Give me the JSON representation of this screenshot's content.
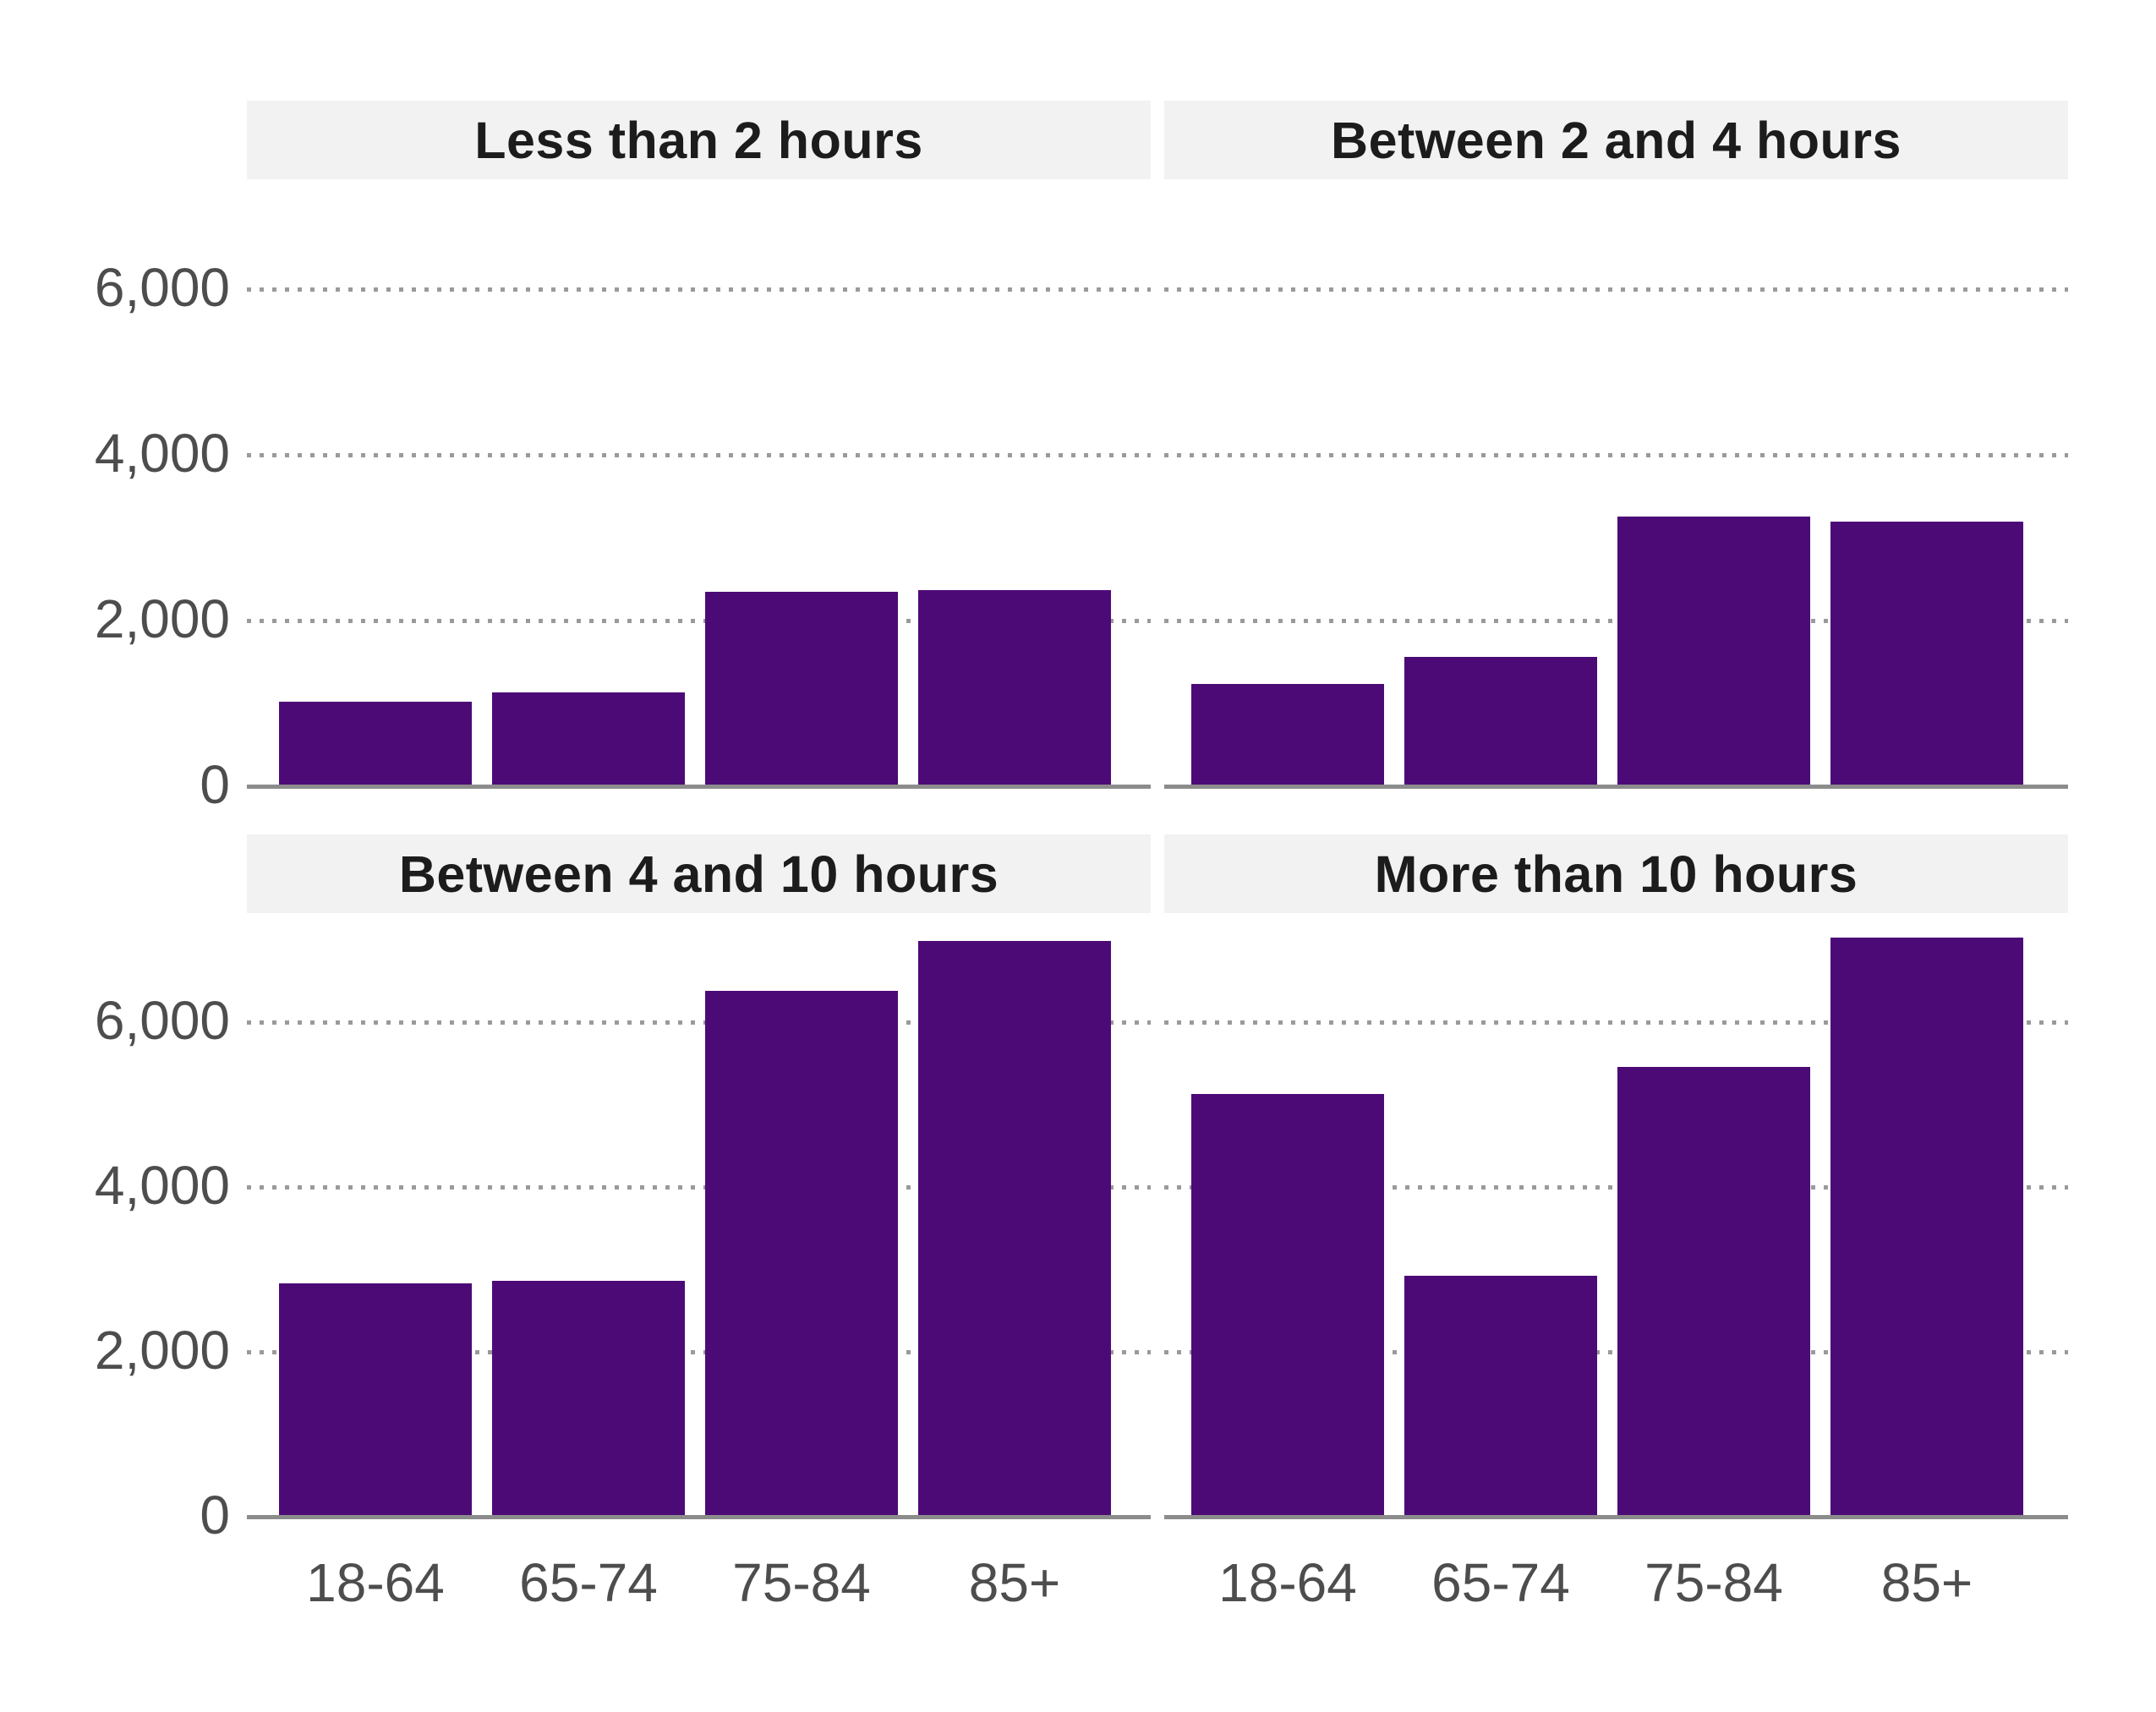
{
  "chart_data": {
    "type": "bar",
    "layout": "2x2 facets, shared axes",
    "categories": [
      "18-64",
      "65-74",
      "75-84",
      "85+"
    ],
    "facets": [
      {
        "title": "Less than 2 hours",
        "values": [
          1000,
          1110,
          2330,
          2350
        ]
      },
      {
        "title": "Between 2 and 4 hours",
        "values": [
          1210,
          1540,
          3230,
          3170
        ]
      },
      {
        "title": "Between 4 and 10 hours",
        "values": [
          2810,
          2840,
          6360,
          6960
        ]
      },
      {
        "title": "More than 10 hours",
        "values": [
          5110,
          2900,
          5440,
          7000
        ]
      }
    ],
    "y_ticks": [
      {
        "label": "6,000",
        "value": 6000
      },
      {
        "label": "4,000",
        "value": 4000
      },
      {
        "label": "2,000",
        "value": 2000
      },
      {
        "label": "0",
        "value": 0
      }
    ],
    "ylim": [
      0,
      7300
    ],
    "xlabel": "",
    "ylabel": "",
    "grid": "dotted horizontal",
    "legend": "none",
    "colors": {
      "bar": "#4c0a77",
      "strip_bg": "#f2f2f2",
      "strip_text": "#1c1c1c",
      "axis_text": "#4d4d4d",
      "gridline": "#9a9a9a",
      "baseline": "#8c8c8c",
      "background": "#ffffff"
    }
  }
}
